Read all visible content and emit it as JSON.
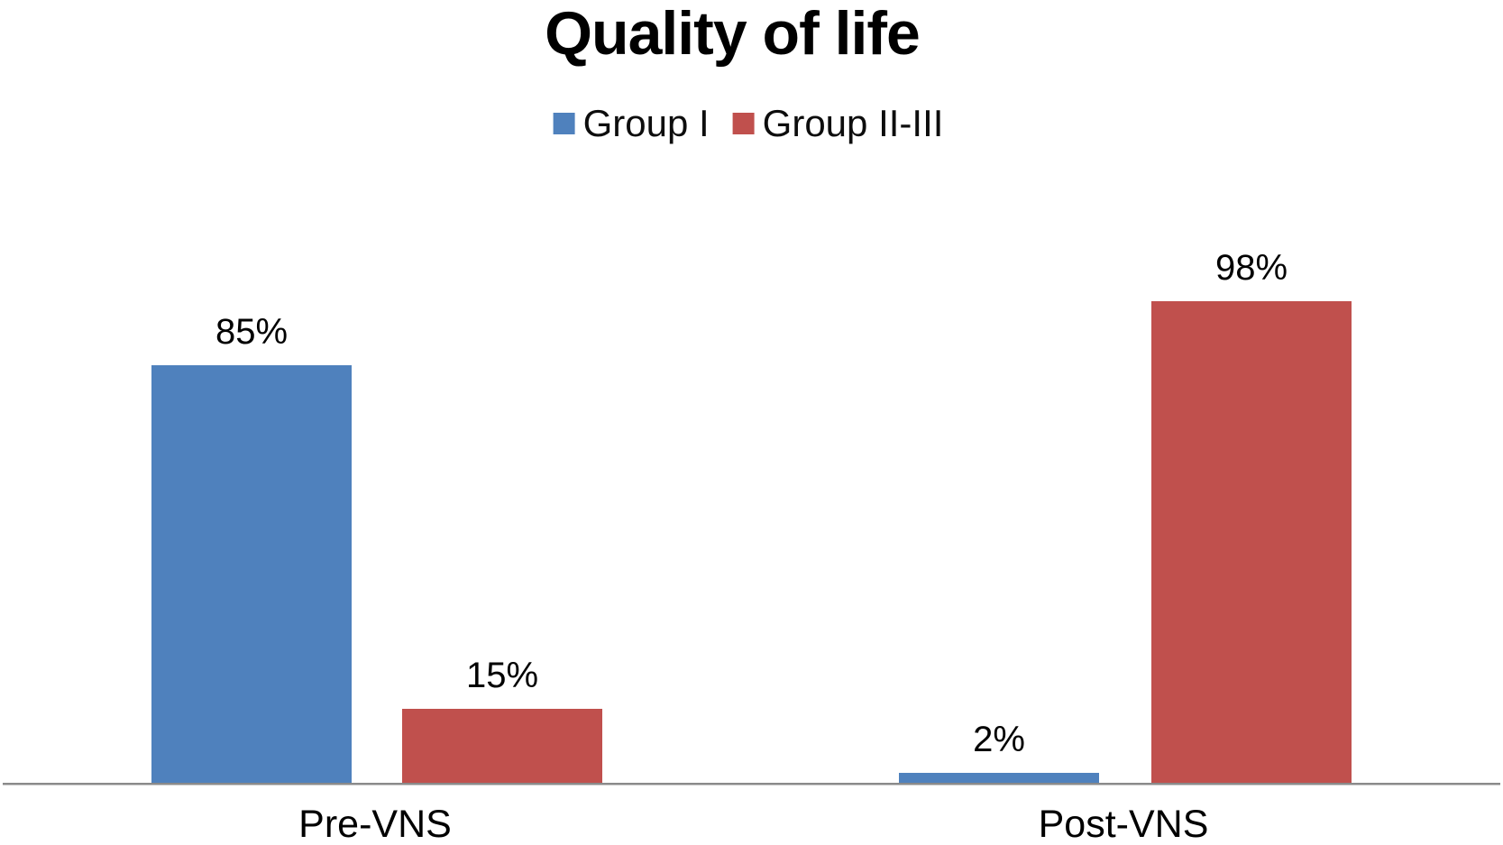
{
  "title": "Quality of life",
  "legend": [
    {
      "label": "Group I",
      "color": "#4F81BD"
    },
    {
      "label": "Group II-III",
      "color": "#C0504D"
    }
  ],
  "colors": {
    "group1_blue": "#4F81BD",
    "group2_red": "#C0504D",
    "axis_line": "#8A8A8A",
    "text": "#000000",
    "background": "#FFFFFF"
  },
  "chart_data": {
    "type": "bar",
    "title": "Quality of life",
    "categories": [
      "Pre-VNS",
      "Post-VNS"
    ],
    "series": [
      {
        "name": "Group I",
        "color": "#4F81BD",
        "values": [
          85,
          2
        ],
        "labels": [
          "85%",
          "2%"
        ]
      },
      {
        "name": "Group II-III",
        "color": "#C0504D",
        "values": [
          15,
          98
        ],
        "labels": [
          "15%",
          "98%"
        ]
      }
    ],
    "unit": "%",
    "ylim": [
      0,
      100
    ],
    "y_axis_visible": false,
    "grid": false,
    "data_labels": true,
    "legend_position": "top"
  }
}
